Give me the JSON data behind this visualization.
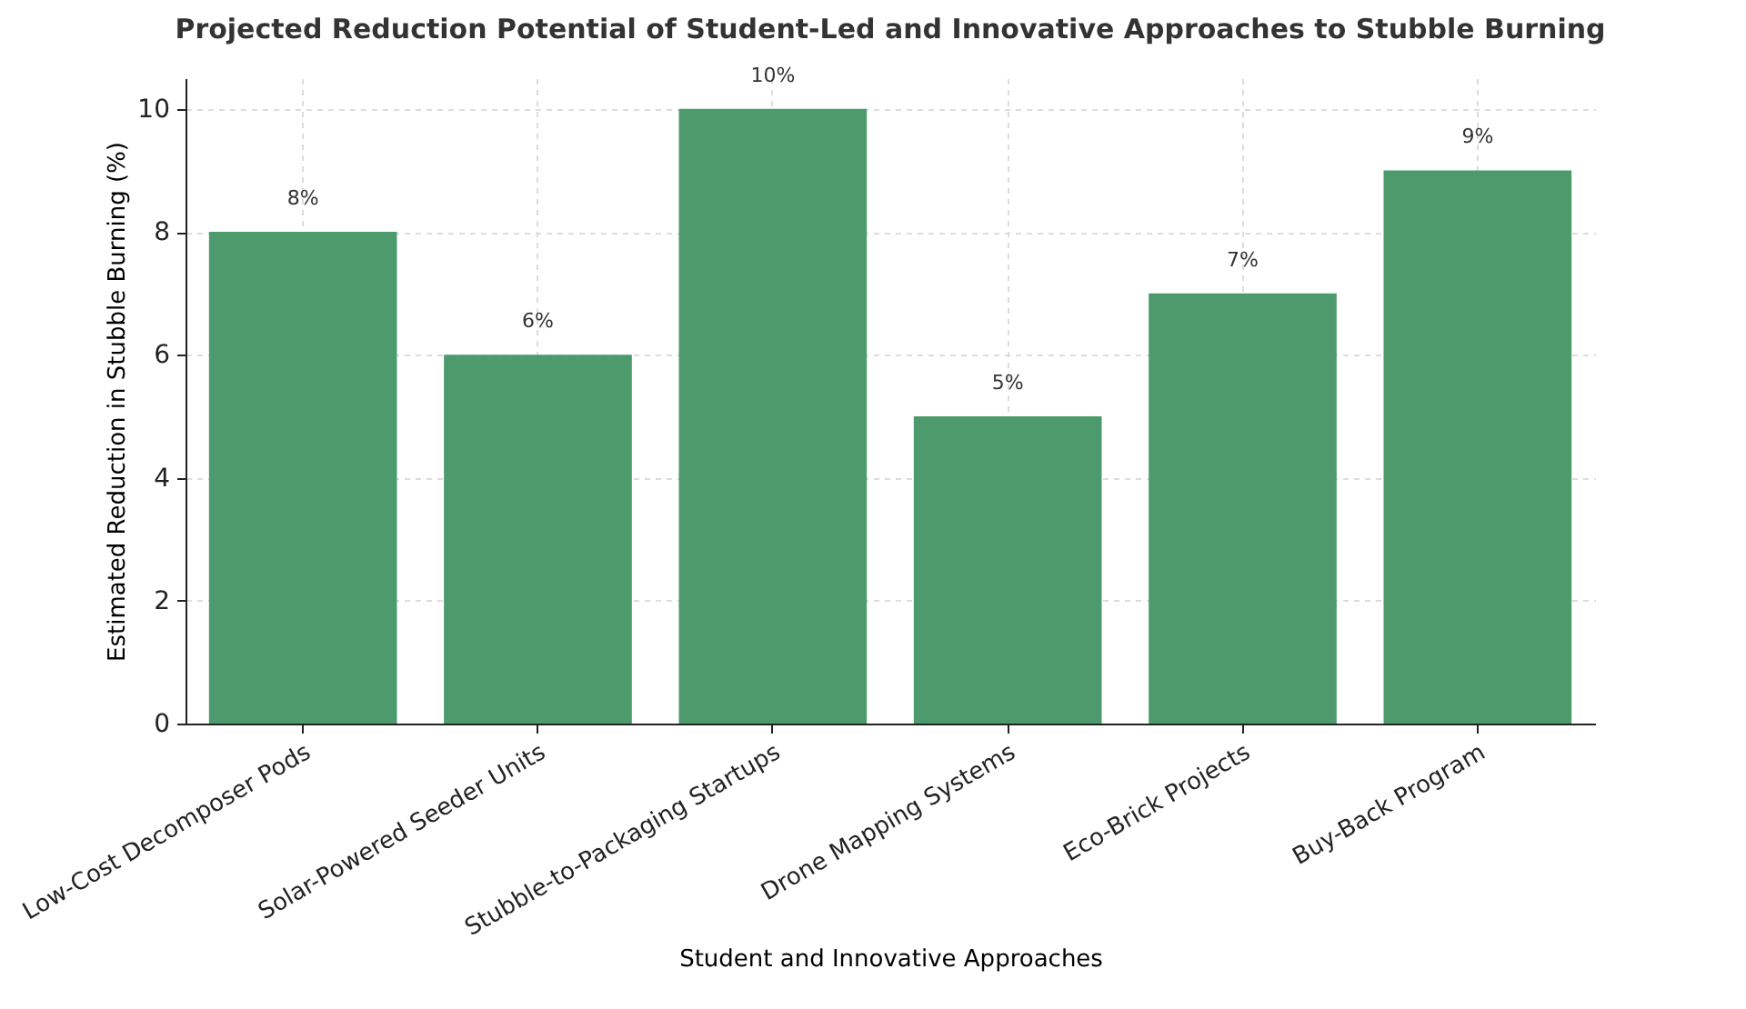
{
  "chart_data": {
    "type": "bar",
    "title": "Projected Reduction Potential of Student-Led and Innovative Approaches to Stubble Burning",
    "xlabel": "Student and Innovative Approaches",
    "ylabel": "Estimated Reduction in Stubble Burning (%)",
    "categories": [
      "Low-Cost Decomposer Pods",
      "Solar-Powered Seeder Units",
      "Stubble-to-Packaging Startups",
      "Drone Mapping Systems",
      "Eco-Brick Projects",
      "Buy-Back Program"
    ],
    "values": [
      8,
      6,
      10,
      5,
      7,
      9
    ],
    "value_labels": [
      "8%",
      "6%",
      "10%",
      "5%",
      "7%",
      "9%"
    ],
    "color": "#4d9a6c",
    "ylim": [
      0,
      10.5
    ],
    "yticks": [
      0,
      2,
      4,
      6,
      8,
      10
    ],
    "grid": true
  }
}
